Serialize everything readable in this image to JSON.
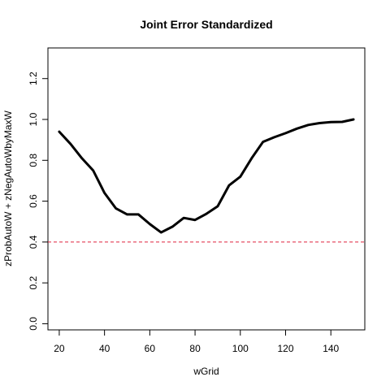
{
  "chart_data": {
    "type": "line",
    "title": "Joint Error Standardized",
    "xlabel": "wGrid",
    "ylabel": "zProbAutoW + zNegAutoWbyMaxW",
    "xlim": [
      15,
      155
    ],
    "ylim": [
      -0.03,
      1.35
    ],
    "xticks": [
      20,
      40,
      60,
      80,
      100,
      120,
      140
    ],
    "xtick_labels": [
      "20",
      "40",
      "60",
      "80",
      "100",
      "120",
      "140"
    ],
    "yticks": [
      0.0,
      0.2,
      0.4,
      0.6,
      0.8,
      1.0,
      1.2
    ],
    "ytick_labels": [
      "0.0",
      "0.2",
      "0.4",
      "0.6",
      "0.8",
      "1.0",
      "1.2"
    ],
    "grid": false,
    "series": [
      {
        "color": "#000000",
        "x": [
          20,
          25,
          30,
          35,
          40,
          45,
          50,
          55,
          60,
          65,
          70,
          75,
          80,
          85,
          90,
          95,
          100,
          105,
          110,
          115,
          120,
          125,
          130,
          135,
          140,
          145,
          150
        ],
        "y": [
          0.94,
          0.88,
          0.81,
          0.75,
          0.64,
          0.565,
          0.535,
          0.535,
          0.488,
          0.447,
          0.475,
          0.518,
          0.508,
          0.538,
          0.575,
          0.677,
          0.72,
          0.81,
          0.89,
          0.913,
          0.933,
          0.955,
          0.973,
          0.982,
          0.987,
          0.988,
          1.0
        ]
      }
    ],
    "reference_line": {
      "y": 0.4,
      "color": "#e0243f",
      "style": "dashed"
    }
  }
}
